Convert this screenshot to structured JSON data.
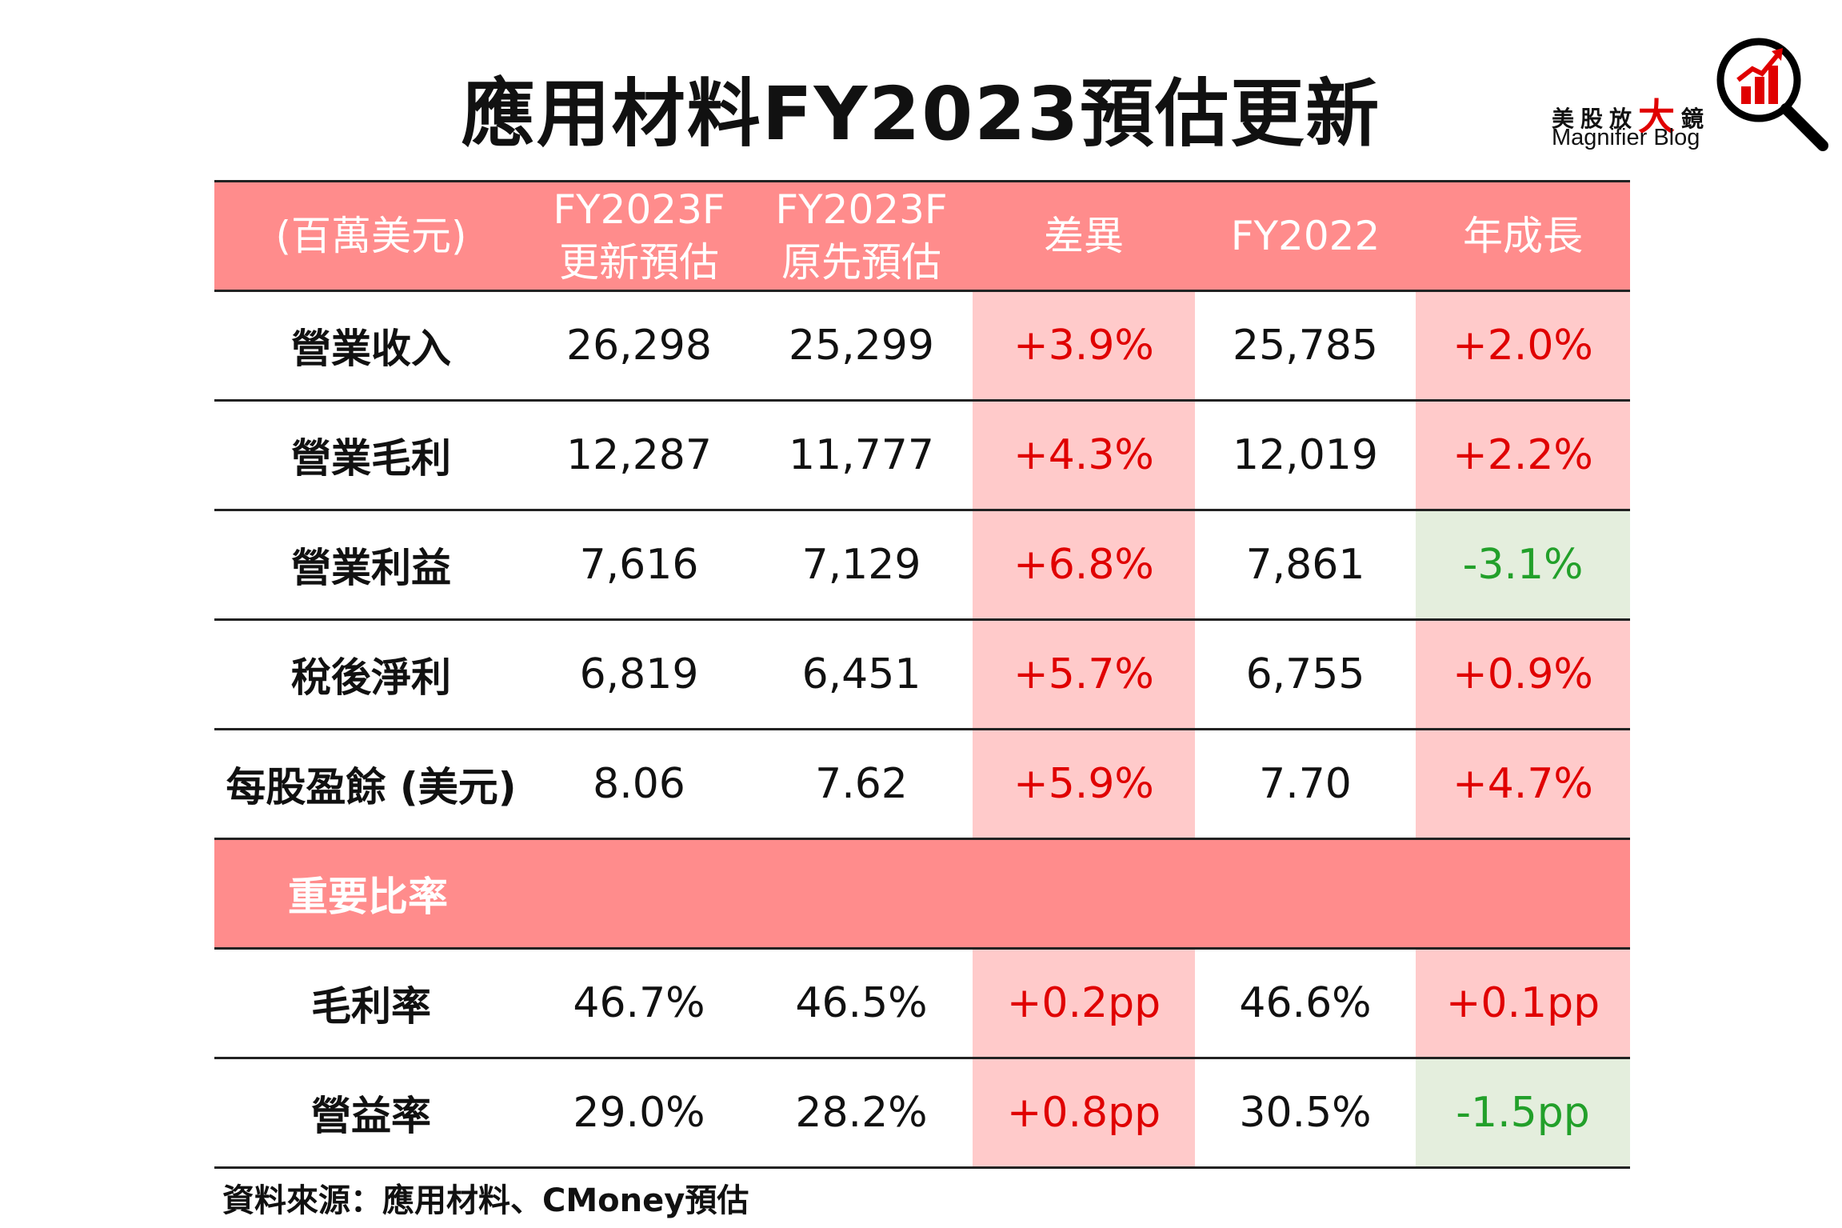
{
  "title": "應用材料FY2023預估更新",
  "logo": {
    "chinese_prefix": "美股放",
    "chinese_big": "大",
    "chinese_suffix": "鏡",
    "english": "Magnifier Blog",
    "icon": "magnifier-chart-icon",
    "accent_color": "#e00000"
  },
  "table": {
    "headers": [
      {
        "line1": "(百萬美元)",
        "line2": ""
      },
      {
        "line1": "FY2023F",
        "line2": "更新預估"
      },
      {
        "line1": "FY2023F",
        "line2": "原先預估"
      },
      {
        "line1": "差異",
        "line2": ""
      },
      {
        "line1": "FY2022",
        "line2": ""
      },
      {
        "line1": "年成長",
        "line2": ""
      }
    ],
    "rows": [
      {
        "label": "營業收入",
        "updated": "26,298",
        "original": "25,299",
        "diff": "+3.9%",
        "fy2022": "25,785",
        "yoy": "+2.0%",
        "yoy_trend": "up"
      },
      {
        "label": "營業毛利",
        "updated": "12,287",
        "original": "11,777",
        "diff": "+4.3%",
        "fy2022": "12,019",
        "yoy": "+2.2%",
        "yoy_trend": "up"
      },
      {
        "label": "營業利益",
        "updated": "7,616",
        "original": "7,129",
        "diff": "+6.8%",
        "fy2022": "7,861",
        "yoy": "-3.1%",
        "yoy_trend": "down"
      },
      {
        "label": "稅後淨利",
        "updated": "6,819",
        "original": "6,451",
        "diff": "+5.7%",
        "fy2022": "6,755",
        "yoy": "+0.9%",
        "yoy_trend": "up"
      },
      {
        "label": "每股盈餘 (美元)",
        "updated": "8.06",
        "original": "7.62",
        "diff": "+5.9%",
        "fy2022": "7.70",
        "yoy": "+4.7%",
        "yoy_trend": "up"
      }
    ],
    "section_label": "重要比率",
    "ratio_rows": [
      {
        "label": "毛利率",
        "updated": "46.7%",
        "original": "46.5%",
        "diff": "+0.2pp",
        "fy2022": "46.6%",
        "yoy": "+0.1pp",
        "yoy_trend": "up"
      },
      {
        "label": "營益率",
        "updated": "29.0%",
        "original": "28.2%",
        "diff": "+0.8pp",
        "fy2022": "30.5%",
        "yoy": "-1.5pp",
        "yoy_trend": "down"
      }
    ]
  },
  "colors": {
    "header_bg": "#ff8c8c",
    "positive_bg": "#ffcaca",
    "positive_text": "#e00000",
    "negative_bg": "#e4eedd",
    "negative_text": "#22a02a"
  },
  "source": "資料來源：應用材料、CMoney預估"
}
